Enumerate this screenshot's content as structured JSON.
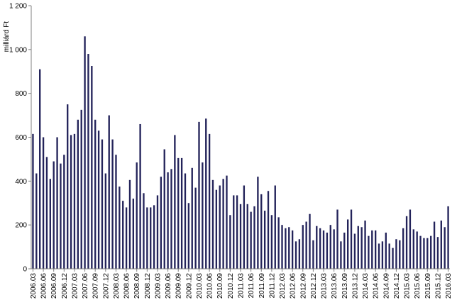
{
  "chart_data": {
    "type": "bar",
    "ylabel": "milliárd Ft",
    "xlabel": "",
    "title": "",
    "ylim": [
      0,
      1200
    ],
    "yticks": [
      {
        "value": 0,
        "label": "0"
      },
      {
        "value": 200,
        "label": "200"
      },
      {
        "value": 400,
        "label": "400"
      },
      {
        "value": 600,
        "label": "600"
      },
      {
        "value": 800,
        "label": "800"
      },
      {
        "value": 1000,
        "label": "1 000"
      },
      {
        "value": 1200,
        "label": "1 200"
      }
    ],
    "xtick_labels": [
      "2006.03",
      "2006.06",
      "2006.09",
      "2006.12",
      "2007.03",
      "2007.06",
      "2007.09",
      "2007.12",
      "2008.03",
      "2008.06",
      "2008.09",
      "2008.12",
      "2009.03",
      "2009.06",
      "2009.09",
      "2009.12",
      "2010.03",
      "2010.06",
      "2010.09",
      "2010.12",
      "2011.03",
      "2011.06",
      "2011.09",
      "2011.12",
      "2012.03",
      "2012.06",
      "2012.09",
      "2012.12",
      "2013.03",
      "2013.06",
      "2013.09",
      "2013.12",
      "2014.03",
      "2014.06",
      "2014.09",
      "2014.12",
      "2015.03",
      "2015.06",
      "2015.09",
      "2015.12",
      "2016.03"
    ],
    "grid": false,
    "legend": "none",
    "bar_color": "#23235a",
    "axis_color": "#808080",
    "categories": [
      "2006.03",
      "2006.04",
      "2006.05",
      "2006.06",
      "2006.07",
      "2006.08",
      "2006.09",
      "2006.10",
      "2006.11",
      "2006.12",
      "2007.01",
      "2007.02",
      "2007.03",
      "2007.04",
      "2007.05",
      "2007.06",
      "2007.07",
      "2007.08",
      "2007.09",
      "2007.10",
      "2007.11",
      "2007.12",
      "2008.01",
      "2008.02",
      "2008.03",
      "2008.04",
      "2008.05",
      "2008.06",
      "2008.07",
      "2008.08",
      "2008.09",
      "2008.10",
      "2008.11",
      "2008.12",
      "2009.01",
      "2009.02",
      "2009.03",
      "2009.04",
      "2009.05",
      "2009.06",
      "2009.07",
      "2009.08",
      "2009.09",
      "2009.10",
      "2009.11",
      "2009.12",
      "2010.01",
      "2010.02",
      "2010.03",
      "2010.04",
      "2010.05",
      "2010.06",
      "2010.07",
      "2010.08",
      "2010.09",
      "2010.10",
      "2010.11",
      "2010.12",
      "2011.01",
      "2011.02",
      "2011.03",
      "2011.04",
      "2011.05",
      "2011.06",
      "2011.07",
      "2011.08",
      "2011.09",
      "2011.10",
      "2011.11",
      "2011.12",
      "2012.01",
      "2012.02",
      "2012.03",
      "2012.04",
      "2012.05",
      "2012.06",
      "2012.07",
      "2012.08",
      "2012.09",
      "2012.10",
      "2012.11",
      "2012.12",
      "2013.01",
      "2013.02",
      "2013.03",
      "2013.04",
      "2013.05",
      "2013.06",
      "2013.07",
      "2013.08",
      "2013.09",
      "2013.10",
      "2013.11",
      "2013.12",
      "2014.01",
      "2014.02",
      "2014.03",
      "2014.04",
      "2014.05",
      "2014.06",
      "2014.07",
      "2014.08",
      "2014.09",
      "2014.10",
      "2014.11",
      "2014.12",
      "2015.01",
      "2015.02",
      "2015.03",
      "2015.04",
      "2015.05",
      "2015.06",
      "2015.07",
      "2015.08",
      "2015.09",
      "2015.10",
      "2015.11",
      "2015.12",
      "2016.01",
      "2016.02",
      "2016.03"
    ],
    "values": [
      615,
      435,
      910,
      600,
      510,
      410,
      490,
      600,
      480,
      520,
      750,
      610,
      615,
      680,
      725,
      1060,
      980,
      925,
      680,
      630,
      590,
      435,
      700,
      590,
      520,
      375,
      310,
      280,
      405,
      320,
      485,
      660,
      345,
      280,
      280,
      290,
      335,
      420,
      545,
      440,
      455,
      610,
      505,
      505,
      435,
      300,
      460,
      370,
      670,
      485,
      685,
      615,
      405,
      360,
      380,
      410,
      425,
      245,
      335,
      335,
      295,
      380,
      295,
      260,
      285,
      420,
      340,
      265,
      355,
      245,
      380,
      235,
      200,
      185,
      190,
      175,
      125,
      135,
      200,
      215,
      250,
      130,
      195,
      185,
      175,
      165,
      200,
      180,
      270,
      125,
      165,
      225,
      270,
      160,
      195,
      190,
      220,
      150,
      175,
      175,
      115,
      125,
      165,
      115,
      95,
      135,
      130,
      185,
      240,
      270,
      180,
      170,
      150,
      140,
      140,
      150,
      215,
      145,
      220,
      190,
      285
    ]
  }
}
